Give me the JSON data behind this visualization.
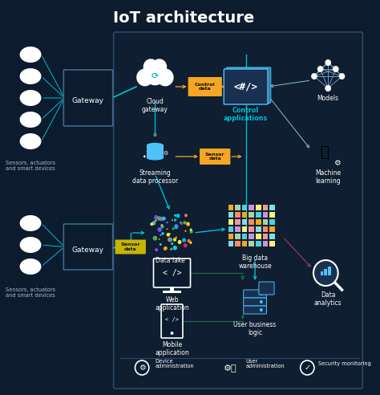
{
  "title": "IoT architecture",
  "bg_color": "#0d1b2e",
  "panel_color": "#0f1e30",
  "panel_border_color": "#2a4a6a",
  "white": "#ffffff",
  "teal": "#00bcd4",
  "teal_dark": "#008fa0",
  "orange": "#f5a623",
  "yellow_badge": "#c8b400",
  "gray_text": "#aabbcc",
  "dark_box": "#0d1b2e",
  "dark_box2": "#111e30",
  "purple_line": "#7c3a6e",
  "green_line": "#1a6a4a",
  "light_blue_line": "#4488aa",
  "sensor_label": "Sensors, actuators\nand smart devices",
  "gateway_label": "Gateway",
  "title_fontsize": 14,
  "label_fontsize": 5.8,
  "small_fontsize": 5.0
}
